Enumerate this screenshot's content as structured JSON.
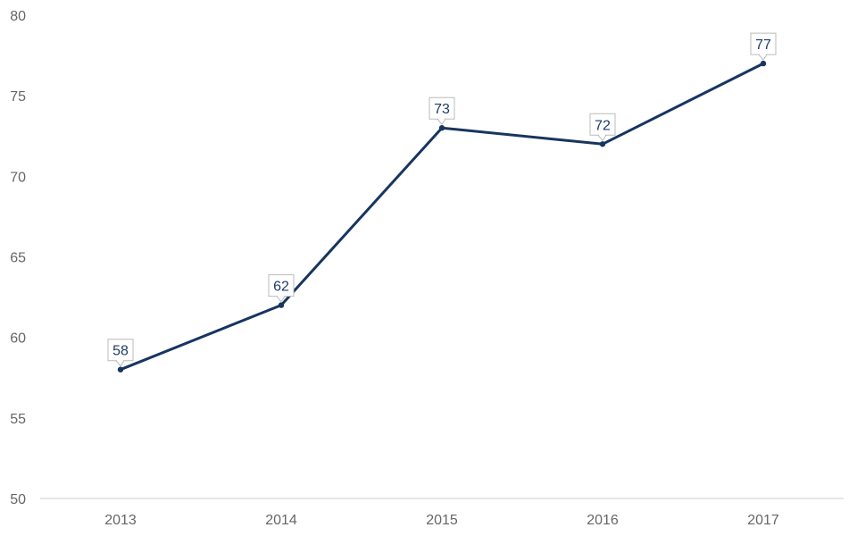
{
  "chart_data": {
    "type": "line",
    "categories": [
      "2013",
      "2014",
      "2015",
      "2016",
      "2017"
    ],
    "series": [
      {
        "values": [
          58,
          62,
          73,
          72,
          77
        ]
      }
    ],
    "ylim": [
      50,
      80
    ],
    "yticks": [
      50,
      55,
      60,
      65,
      70,
      75,
      80
    ],
    "title": "",
    "xlabel": "",
    "ylabel": "",
    "grid": false,
    "legend": "none",
    "data_labels": true
  },
  "colors": {
    "line": "#17355f",
    "axis": "#cccccc",
    "tick_text": "#666666",
    "label_text": "#1f3b66",
    "label_border": "#bbbbbb"
  }
}
